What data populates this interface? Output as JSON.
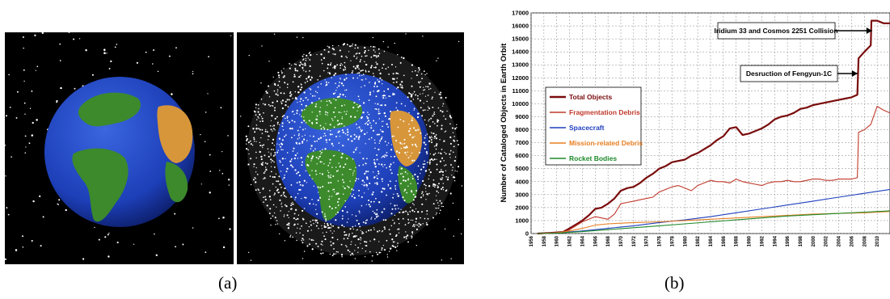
{
  "captions": {
    "a": "(a)",
    "b": "(b)"
  },
  "panel_a": {
    "images": [
      "earth-sparse-debris-illustration",
      "earth-dense-debris-illustration"
    ],
    "colors": {
      "ocean": "#1d3fb8",
      "land": "#3c8a2c",
      "desert": "#d7963a",
      "background": "#000000",
      "debris": "#ffffff"
    }
  },
  "chart_data": {
    "type": "line",
    "ylabel": "Number of Cataloged Objects in Earth Orbit",
    "xlim": [
      1956,
      2012
    ],
    "ylim": [
      0,
      17000
    ],
    "y_ticks": [
      0,
      1000,
      2000,
      3000,
      4000,
      5000,
      6000,
      7000,
      8000,
      9000,
      10000,
      11000,
      12000,
      13000,
      14000,
      15000,
      16000,
      17000
    ],
    "x_ticks": [
      1956,
      1958,
      1960,
      1962,
      1964,
      1966,
      1968,
      1970,
      1972,
      1974,
      1976,
      1978,
      1980,
      1982,
      1984,
      1986,
      1988,
      1990,
      1992,
      1994,
      1996,
      1998,
      2000,
      2002,
      2004,
      2006,
      2008,
      2010
    ],
    "grid": true,
    "legend_position": "left-middle",
    "series": [
      {
        "name": "Total Objects",
        "color": "#7a0c0c",
        "x": [
          1957,
          1959,
          1961,
          1962,
          1963,
          1964,
          1965,
          1966,
          1967,
          1968,
          1969,
          1970,
          1971,
          1972,
          1973,
          1974,
          1975,
          1976,
          1977,
          1978,
          1979,
          1980,
          1981,
          1982,
          1983,
          1984,
          1985,
          1986,
          1987,
          1988,
          1989,
          1990,
          1991,
          1992,
          1993,
          1994,
          1995,
          1996,
          1997,
          1998,
          1999,
          2000,
          2001,
          2002,
          2003,
          2004,
          2005,
          2006,
          2006.9,
          2007.1,
          2008,
          2009,
          2009.1,
          2010,
          2011,
          2012
        ],
        "y": [
          0,
          50,
          120,
          400,
          700,
          1000,
          1400,
          1900,
          2000,
          2300,
          2700,
          3300,
          3500,
          3600,
          3900,
          4300,
          4600,
          5000,
          5200,
          5500,
          5600,
          5700,
          6000,
          6200,
          6500,
          6800,
          7200,
          7500,
          8100,
          8200,
          7600,
          7700,
          7900,
          8100,
          8400,
          8800,
          9000,
          9100,
          9300,
          9600,
          9700,
          9900,
          10000,
          10100,
          10200,
          10300,
          10400,
          10500,
          10700,
          13500,
          14000,
          14500,
          16400,
          16400,
          16200,
          16200
        ]
      },
      {
        "name": "Fragmentation Debris",
        "color": "#c0392b",
        "x": [
          1957,
          1961,
          1962,
          1963,
          1964,
          1965,
          1966,
          1967,
          1968,
          1969,
          1970,
          1971,
          1972,
          1973,
          1974,
          1975,
          1976,
          1977,
          1978,
          1979,
          1980,
          1981,
          1982,
          1983,
          1984,
          1985,
          1986,
          1987,
          1988,
          1989,
          1990,
          1991,
          1992,
          1993,
          1994,
          1995,
          1996,
          1997,
          1998,
          1999,
          2000,
          2001,
          2002,
          2003,
          2004,
          2005,
          2006,
          2006.9,
          2007.1,
          2008,
          2009,
          2010,
          2011,
          2012
        ],
        "y": [
          0,
          100,
          300,
          600,
          900,
          1100,
          1300,
          1200,
          1100,
          1500,
          2300,
          2400,
          2500,
          2600,
          2700,
          2800,
          3200,
          3400,
          3600,
          3700,
          3500,
          3300,
          3700,
          3900,
          4100,
          4000,
          4000,
          3900,
          4200,
          4000,
          3900,
          3800,
          3700,
          3900,
          4000,
          4000,
          4100,
          4000,
          4000,
          4100,
          4200,
          4200,
          4100,
          4100,
          4200,
          4200,
          4200,
          4300,
          7800,
          8000,
          8400,
          9800,
          9500,
          9300
        ]
      },
      {
        "name": "Spacecraft",
        "color": "#1f3fbf",
        "x": [
          1957,
          1960,
          1964,
          1968,
          1972,
          1976,
          1980,
          1984,
          1988,
          1992,
          1996,
          2000,
          2004,
          2008,
          2012
        ],
        "y": [
          0,
          50,
          200,
          400,
          600,
          850,
          1050,
          1300,
          1600,
          1900,
          2200,
          2500,
          2800,
          3100,
          3400
        ]
      },
      {
        "name": "Mission-related Debris",
        "color": "#e67e22",
        "x": [
          1957,
          1960,
          1962,
          1964,
          1966,
          1968,
          1970,
          1972,
          1976,
          1980,
          1984,
          1988,
          1992,
          1996,
          2000,
          2004,
          2008,
          2012
        ],
        "y": [
          0,
          50,
          200,
          400,
          650,
          750,
          800,
          850,
          900,
          1000,
          1100,
          1200,
          1300,
          1400,
          1500,
          1550,
          1600,
          1700
        ]
      },
      {
        "name": "Rocket Bodies",
        "color": "#1e8a2a",
        "x": [
          1957,
          1960,
          1964,
          1968,
          1972,
          1976,
          1980,
          1984,
          1988,
          1992,
          1996,
          2000,
          2004,
          2008,
          2012
        ],
        "y": [
          0,
          30,
          150,
          300,
          450,
          600,
          750,
          900,
          1050,
          1200,
          1350,
          1450,
          1550,
          1650,
          1750
        ]
      }
    ],
    "annotations": [
      {
        "text": "Iridium 33 and Cosmos 2251 Collision",
        "x": 2009.2,
        "y": 16300
      },
      {
        "text": "Desruction of Fengyun-1C",
        "x": 2007.2,
        "y": 13000
      }
    ]
  }
}
